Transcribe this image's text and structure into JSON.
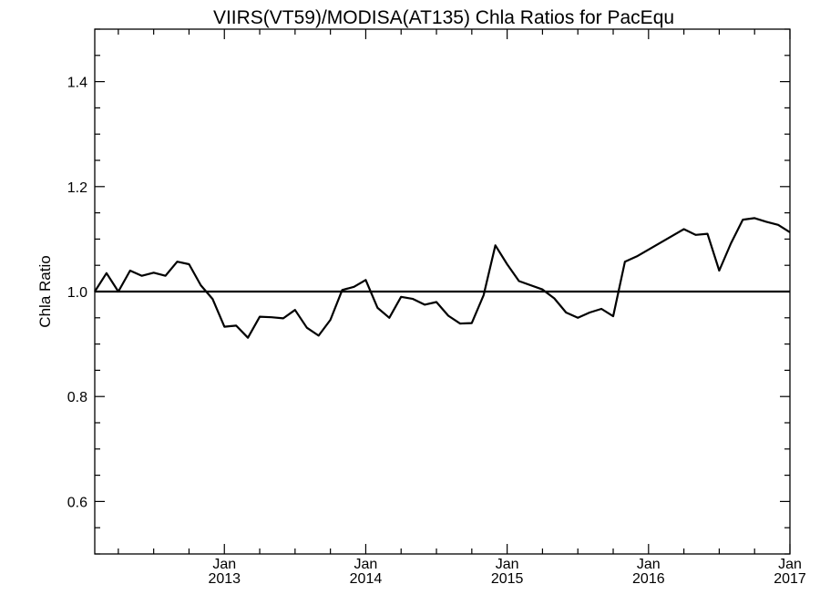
{
  "chart_data": {
    "type": "line",
    "title": "VIIRS(VT59)/MODISA(AT135)  Chla Ratios for PacEqu",
    "xlabel": "",
    "ylabel": "Chla Ratio",
    "x_ticks": [
      {
        "month": "Jan",
        "year": "2013",
        "date": "2013-01"
      },
      {
        "month": "Jan",
        "year": "2014",
        "date": "2014-01"
      },
      {
        "month": "Jan",
        "year": "2015",
        "date": "2015-01"
      },
      {
        "month": "Jan",
        "year": "2016",
        "date": "2016-01"
      },
      {
        "month": "Jan",
        "year": "2017",
        "date": "2017-01"
      }
    ],
    "xlim": [
      "2012-02-01",
      "2017-01-01"
    ],
    "ylim": [
      0.5,
      1.5
    ],
    "y_ticks": [
      "0.6",
      "0.8",
      "1.0",
      "1.2",
      "1.4"
    ],
    "reference_line": 1.0,
    "grid": false,
    "series": [
      {
        "color": "#000000",
        "x": [
          "2012-02-01",
          "2012-03-01",
          "2012-04-01",
          "2012-05-01",
          "2012-06-01",
          "2012-07-01",
          "2012-08-01",
          "2012-09-01",
          "2012-10-01",
          "2012-11-01",
          "2012-12-01",
          "2013-01-01",
          "2013-02-01",
          "2013-03-01",
          "2013-04-01",
          "2013-05-01",
          "2013-06-01",
          "2013-07-01",
          "2013-08-01",
          "2013-09-01",
          "2013-10-01",
          "2013-11-01",
          "2013-12-01",
          "2014-01-01",
          "2014-02-01",
          "2014-03-01",
          "2014-04-01",
          "2014-05-01",
          "2014-06-01",
          "2014-07-01",
          "2014-08-01",
          "2014-09-01",
          "2014-10-01",
          "2014-11-01",
          "2014-12-01",
          "2015-01-01",
          "2015-02-01",
          "2015-04-01",
          "2015-05-01",
          "2015-06-01",
          "2015-07-01",
          "2015-08-01",
          "2015-09-01",
          "2015-10-01",
          "2015-11-01",
          "2015-12-01",
          "2016-04-01",
          "2016-05-01",
          "2016-06-01",
          "2016-07-01",
          "2016-08-01",
          "2016-09-01",
          "2016-10-01",
          "2016-11-01",
          "2016-12-01",
          "2017-01-01"
        ],
        "values": [
          1.0,
          1.035,
          1.0,
          1.04,
          1.03,
          1.036,
          1.03,
          1.057,
          1.052,
          1.012,
          0.986,
          0.933,
          0.935,
          0.912,
          0.952,
          0.951,
          0.949,
          0.965,
          0.931,
          0.916,
          0.946,
          1.003,
          1.009,
          1.022,
          0.969,
          0.95,
          0.99,
          0.986,
          0.975,
          0.98,
          0.954,
          0.939,
          0.94,
          0.993,
          1.088,
          1.052,
          1.02,
          1.004,
          0.987,
          0.96,
          0.95,
          0.96,
          0.967,
          0.953,
          1.057,
          1.067,
          1.119,
          1.108,
          1.11,
          1.04,
          1.092,
          1.137,
          1.14,
          1.133,
          1.127,
          1.113
        ]
      }
    ]
  }
}
